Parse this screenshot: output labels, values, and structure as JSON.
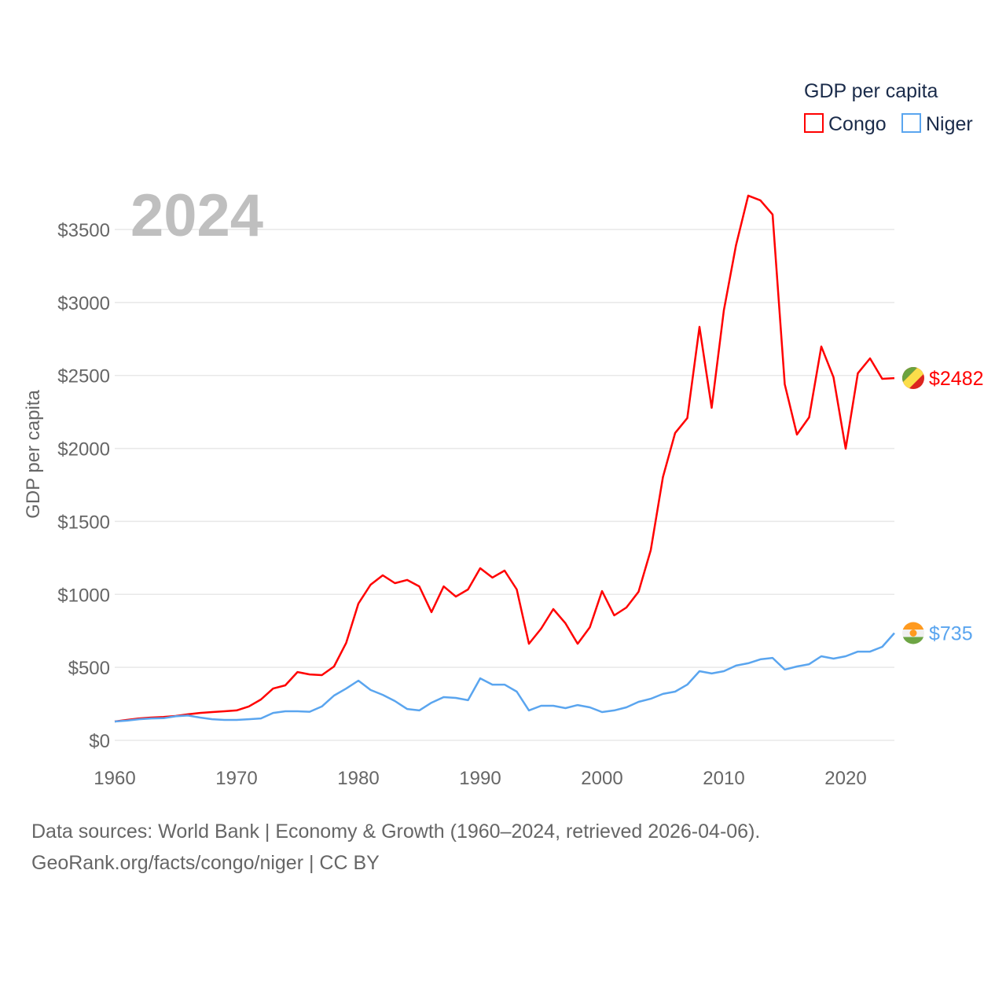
{
  "chart_data": {
    "type": "line",
    "title": "GDP per capita",
    "ylabel": "GDP per capita",
    "xlabel": "",
    "year_label": "2024",
    "xlim": [
      1960,
      2024
    ],
    "ylim": [
      0,
      3500
    ],
    "xticks": [
      1960,
      1970,
      1980,
      1990,
      2000,
      2010,
      2020
    ],
    "xtick_labels": [
      "1960",
      "1970",
      "1980",
      "1990",
      "2000",
      "2010",
      "2020"
    ],
    "yticks": [
      0,
      500,
      1000,
      1500,
      2000,
      2500,
      3000,
      3500
    ],
    "ytick_labels": [
      "$0",
      "$500",
      "$1000",
      "$1500",
      "$2000",
      "$2500",
      "$3000",
      "$3500"
    ],
    "grid": true,
    "legend_position": "top-right",
    "x_start": 1960,
    "series": [
      {
        "name": "Congo",
        "color": "#ff0000",
        "end_label": "$2482",
        "flag": "congo-flag",
        "values": [
          129,
          140,
          150,
          156,
          160,
          167,
          178,
          188,
          194,
          199,
          205,
          232,
          280,
          355,
          377,
          468,
          452,
          447,
          506,
          668,
          937,
          1066,
          1131,
          1077,
          1099,
          1055,
          878,
          1055,
          985,
          1034,
          1179,
          1115,
          1163,
          1034,
          662,
          765,
          899,
          802,
          662,
          775,
          1023,
          856,
          910,
          1018,
          1303,
          1804,
          2106,
          2208,
          2833,
          2278,
          2946,
          3393,
          3732,
          3700,
          3603,
          2439,
          2095,
          2213,
          2698,
          2488,
          1998,
          2515,
          2617,
          2477,
          2482
        ]
      },
      {
        "name": "Niger",
        "color": "#5aa5ef",
        "end_label": "$735",
        "flag": "niger-flag",
        "values": [
          129,
          135,
          145,
          150,
          152,
          165,
          170,
          156,
          145,
          140,
          140,
          145,
          150,
          188,
          199,
          199,
          196,
          232,
          307,
          355,
          409,
          345,
          312,
          269,
          215,
          205,
          258,
          296,
          291,
          275,
          425,
          382,
          382,
          334,
          205,
          237,
          237,
          221,
          242,
          226,
          194,
          205,
          226,
          264,
          285,
          318,
          334,
          382,
          474,
          458,
          474,
          512,
          528,
          555,
          565,
          485,
          506,
          522,
          576,
          560,
          576,
          608,
          608,
          641,
          735
        ]
      }
    ]
  },
  "footer": {
    "line1": "Data sources: World Bank | Economy & Growth (1960–2024, retrieved 2026-04-06).",
    "line2": "GeoRank.org/facts/congo/niger | CC BY"
  }
}
